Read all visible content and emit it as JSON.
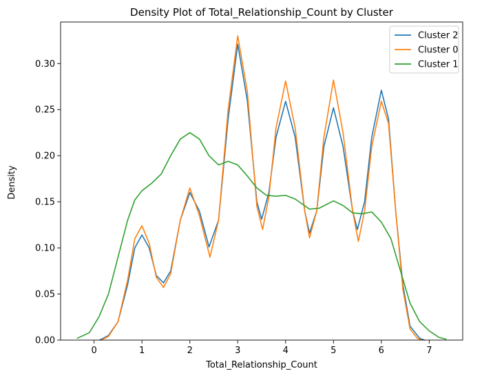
{
  "chart_data": {
    "type": "line",
    "title": "Density Plot of Total_Relationship_Count by Cluster",
    "xlabel": "Total_Relationship_Count",
    "ylabel": "Density",
    "xlim": [
      -0.7,
      7.7
    ],
    "ylim": [
      0,
      0.345
    ],
    "x_ticks": [
      0,
      1,
      2,
      3,
      4,
      5,
      6,
      7
    ],
    "y_ticks": [
      0.0,
      0.05,
      0.1,
      0.15,
      0.2,
      0.25,
      0.3
    ],
    "y_tick_labels": [
      "0.00",
      "0.05",
      "0.10",
      "0.15",
      "0.20",
      "0.25",
      "0.30"
    ],
    "grid": false,
    "legend_position": "top-right",
    "series": [
      {
        "name": "Cluster 2",
        "color": "#1f77b4",
        "points": [
          [
            0.12,
            0.0
          ],
          [
            0.3,
            0.005
          ],
          [
            0.5,
            0.02
          ],
          [
            0.7,
            0.06
          ],
          [
            0.85,
            0.1
          ],
          [
            1.0,
            0.114
          ],
          [
            1.15,
            0.1
          ],
          [
            1.3,
            0.07
          ],
          [
            1.45,
            0.062
          ],
          [
            1.6,
            0.075
          ],
          [
            1.8,
            0.13
          ],
          [
            2.0,
            0.16
          ],
          [
            2.2,
            0.14
          ],
          [
            2.4,
            0.101
          ],
          [
            2.6,
            0.13
          ],
          [
            2.8,
            0.24
          ],
          [
            3.0,
            0.321
          ],
          [
            3.2,
            0.26
          ],
          [
            3.4,
            0.15
          ],
          [
            3.5,
            0.131
          ],
          [
            3.65,
            0.16
          ],
          [
            3.8,
            0.22
          ],
          [
            4.0,
            0.259
          ],
          [
            4.2,
            0.22
          ],
          [
            4.4,
            0.14
          ],
          [
            4.5,
            0.116
          ],
          [
            4.65,
            0.14
          ],
          [
            4.8,
            0.21
          ],
          [
            5.0,
            0.252
          ],
          [
            5.2,
            0.21
          ],
          [
            5.4,
            0.14
          ],
          [
            5.5,
            0.12
          ],
          [
            5.65,
            0.15
          ],
          [
            5.8,
            0.22
          ],
          [
            6.0,
            0.271
          ],
          [
            6.15,
            0.24
          ],
          [
            6.3,
            0.14
          ],
          [
            6.45,
            0.06
          ],
          [
            6.6,
            0.015
          ],
          [
            6.8,
            0.002
          ],
          [
            6.9,
            0.0
          ]
        ]
      },
      {
        "name": "Cluster 0",
        "color": "#ff7f0e",
        "points": [
          [
            0.15,
            0.0
          ],
          [
            0.3,
            0.004
          ],
          [
            0.5,
            0.02
          ],
          [
            0.7,
            0.065
          ],
          [
            0.85,
            0.11
          ],
          [
            1.0,
            0.124
          ],
          [
            1.15,
            0.105
          ],
          [
            1.3,
            0.068
          ],
          [
            1.45,
            0.057
          ],
          [
            1.6,
            0.072
          ],
          [
            1.8,
            0.13
          ],
          [
            2.0,
            0.165
          ],
          [
            2.2,
            0.135
          ],
          [
            2.42,
            0.09
          ],
          [
            2.6,
            0.13
          ],
          [
            2.8,
            0.25
          ],
          [
            3.0,
            0.33
          ],
          [
            3.2,
            0.27
          ],
          [
            3.4,
            0.145
          ],
          [
            3.52,
            0.12
          ],
          [
            3.65,
            0.155
          ],
          [
            3.8,
            0.23
          ],
          [
            4.0,
            0.281
          ],
          [
            4.2,
            0.23
          ],
          [
            4.4,
            0.14
          ],
          [
            4.5,
            0.111
          ],
          [
            4.65,
            0.14
          ],
          [
            4.8,
            0.22
          ],
          [
            5.0,
            0.282
          ],
          [
            5.2,
            0.225
          ],
          [
            5.4,
            0.14
          ],
          [
            5.52,
            0.107
          ],
          [
            5.65,
            0.14
          ],
          [
            5.8,
            0.21
          ],
          [
            6.0,
            0.259
          ],
          [
            6.15,
            0.235
          ],
          [
            6.3,
            0.14
          ],
          [
            6.45,
            0.055
          ],
          [
            6.6,
            0.012
          ],
          [
            6.75,
            0.002
          ],
          [
            6.85,
            0.0
          ]
        ]
      },
      {
        "name": "Cluster 1",
        "color": "#2ca02c",
        "points": [
          [
            -0.35,
            0.002
          ],
          [
            -0.1,
            0.008
          ],
          [
            0.1,
            0.025
          ],
          [
            0.3,
            0.05
          ],
          [
            0.5,
            0.09
          ],
          [
            0.7,
            0.13
          ],
          [
            0.85,
            0.152
          ],
          [
            1.0,
            0.162
          ],
          [
            1.2,
            0.17
          ],
          [
            1.4,
            0.18
          ],
          [
            1.6,
            0.2
          ],
          [
            1.8,
            0.218
          ],
          [
            2.0,
            0.225
          ],
          [
            2.2,
            0.218
          ],
          [
            2.4,
            0.2
          ],
          [
            2.6,
            0.19
          ],
          [
            2.8,
            0.194
          ],
          [
            3.0,
            0.19
          ],
          [
            3.2,
            0.178
          ],
          [
            3.4,
            0.165
          ],
          [
            3.6,
            0.157
          ],
          [
            3.8,
            0.156
          ],
          [
            4.0,
            0.157
          ],
          [
            4.2,
            0.153
          ],
          [
            4.5,
            0.142
          ],
          [
            4.7,
            0.143
          ],
          [
            5.0,
            0.151
          ],
          [
            5.2,
            0.146
          ],
          [
            5.4,
            0.138
          ],
          [
            5.6,
            0.137
          ],
          [
            5.8,
            0.139
          ],
          [
            6.0,
            0.128
          ],
          [
            6.2,
            0.11
          ],
          [
            6.4,
            0.075
          ],
          [
            6.6,
            0.04
          ],
          [
            6.8,
            0.02
          ],
          [
            7.0,
            0.01
          ],
          [
            7.2,
            0.003
          ],
          [
            7.35,
            0.001
          ]
        ]
      }
    ]
  }
}
